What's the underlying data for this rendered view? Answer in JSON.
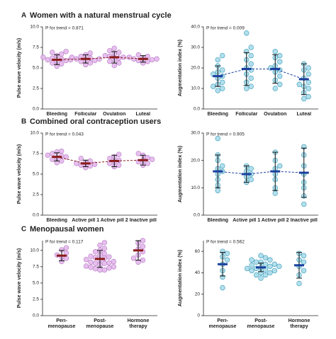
{
  "sections": [
    {
      "letter": "A",
      "title": "Women with a natural menstrual cycle"
    },
    {
      "letter": "B",
      "title": "Combined oral contraception users"
    },
    {
      "letter": "C",
      "title": "Menopausal women"
    }
  ],
  "chart_data": [
    {
      "type": "dot",
      "annotation": "P for trend = 0.871",
      "ylabel": "Pulse wave velocity (m/s)",
      "categories": [
        "Bleeding",
        "Follicular",
        "Ovulation",
        "Luteal"
      ],
      "points": [
        [
          5.2,
          5.5,
          5.6,
          5.8,
          5.9,
          6.0,
          6.0,
          6.1,
          6.2,
          6.3,
          6.5,
          6.7,
          6.9,
          7.0
        ],
        [
          5.4,
          5.6,
          5.8,
          5.9,
          6.0,
          6.1,
          6.1,
          6.2,
          6.3,
          6.4,
          6.6,
          6.8
        ],
        [
          5.3,
          5.6,
          5.8,
          6.0,
          6.2,
          6.3,
          6.4,
          6.5,
          6.7,
          6.9,
          7.1,
          7.4
        ],
        [
          5.6,
          5.8,
          5.9,
          6.0,
          6.1,
          6.1,
          6.2,
          6.3,
          6.4,
          6.6
        ]
      ],
      "means": [
        6.0,
        6.1,
        6.3,
        6.1
      ],
      "sds": [
        0.6,
        0.5,
        0.7,
        0.4
      ],
      "connect": true,
      "point_color": "#e4b8ec",
      "point_edge": "#b57ac4",
      "mean_color": "#8b1a1a",
      "ylim": [
        0,
        10
      ],
      "yticks": [
        {
          "value": 0,
          "label": "0.0"
        },
        {
          "value": 2.5,
          "label": "2.5"
        },
        {
          "value": 5,
          "label": "5.0"
        },
        {
          "value": 7.5,
          "label": "7.5"
        },
        {
          "value": 10,
          "label": "10.0"
        }
      ]
    },
    {
      "type": "dot",
      "annotation": "P for trend = 0.009",
      "ylabel": "Augmentation index (%)",
      "categories": [
        "Bleeding",
        "Follicular",
        "Ovulation",
        "Luteal"
      ],
      "points": [
        [
          9,
          10,
          11,
          12,
          13,
          15,
          16,
          17,
          18,
          19,
          21,
          24,
          26
        ],
        [
          10,
          11,
          13,
          15,
          17,
          19,
          20,
          22,
          24,
          26,
          28,
          30,
          37
        ],
        [
          10,
          12,
          14,
          16,
          18,
          19,
          20,
          21,
          23,
          25,
          26,
          28
        ],
        [
          5,
          6,
          8,
          10,
          11,
          12,
          13,
          15,
          17,
          19,
          20,
          22
        ]
      ],
      "means": [
        16,
        19.5,
        19.5,
        14.5
      ],
      "sds": [
        5,
        8,
        7,
        7.5
      ],
      "connect": true,
      "point_color": "#a9dcea",
      "point_edge": "#3a9ab8",
      "mean_color": "#1a3f9f",
      "ylim": [
        0,
        40
      ],
      "yticks": [
        {
          "value": 0,
          "label": "0.0"
        },
        {
          "value": 10,
          "label": "10.0"
        },
        {
          "value": 20,
          "label": "20.0"
        },
        {
          "value": 30,
          "label": "30.0"
        },
        {
          "value": 40,
          "label": "40.0"
        }
      ]
    },
    {
      "type": "dot",
      "annotation": "P for trend = 0.043",
      "ylabel": "Pulse wave velocity (m/s)",
      "categories": [
        "Bleeding",
        "Active pill 1",
        "Active pill 2",
        "Inactive pill"
      ],
      "points": [
        [
          6.4,
          6.6,
          6.8,
          7.0,
          7.1,
          7.2,
          7.3,
          7.5,
          7.7,
          7.8
        ],
        [
          5.8,
          6.0,
          6.1,
          6.2,
          6.3,
          6.4,
          6.6,
          6.9
        ],
        [
          5.9,
          6.1,
          6.3,
          6.5,
          6.7,
          6.9,
          7.1,
          7.4
        ],
        [
          6.1,
          6.3,
          6.5,
          6.7,
          6.8,
          7.0,
          7.3,
          7.5
        ]
      ],
      "means": [
        7.1,
        6.3,
        6.6,
        6.7
      ],
      "sds": [
        0.5,
        0.4,
        0.7,
        0.6
      ],
      "connect": true,
      "point_color": "#e4b8ec",
      "point_edge": "#b57ac4",
      "mean_color": "#8b1a1a",
      "ylim": [
        0,
        10
      ],
      "yticks": [
        {
          "value": 0,
          "label": "0.0"
        },
        {
          "value": 2.5,
          "label": "2.5"
        },
        {
          "value": 5,
          "label": "5.0"
        },
        {
          "value": 7.5,
          "label": "7.5"
        },
        {
          "value": 10,
          "label": "10.0"
        }
      ]
    },
    {
      "type": "dot",
      "annotation": "P for trend = 0.905",
      "ylabel": "Augmentation index (%)",
      "categories": [
        "Bleeding",
        "Active pill 1",
        "Active pill 2",
        "Inactive pill"
      ],
      "points": [
        [
          9,
          11,
          13,
          15,
          16,
          17,
          18,
          20,
          22,
          28
        ],
        [
          12,
          13,
          14,
          15,
          16,
          17,
          18
        ],
        [
          8,
          10,
          13,
          15,
          17,
          18,
          20,
          23
        ],
        [
          4,
          7,
          10,
          12,
          15,
          18,
          22,
          25
        ]
      ],
      "means": [
        16,
        15,
        16,
        15.5
      ],
      "sds": [
        6,
        3,
        7,
        9
      ],
      "connect": true,
      "point_color": "#a9dcea",
      "point_edge": "#3a9ab8",
      "mean_color": "#1a3f9f",
      "ylim": [
        0,
        30
      ],
      "yticks": [
        {
          "value": 0,
          "label": "0.0"
        },
        {
          "value": 10,
          "label": "10.0"
        },
        {
          "value": 20,
          "label": "20.0"
        },
        {
          "value": 30,
          "label": "30.0"
        }
      ]
    },
    {
      "type": "dot",
      "annotation": "P for trend = 0.117",
      "ylabel": "Pulse wave velocity (m/s)",
      "categories": [
        "Peri-menopause",
        "Post-menopause",
        "Hormone therapy"
      ],
      "points": [
        [
          8.3,
          8.8,
          9.0,
          9.3,
          9.6,
          10.1,
          10.4
        ],
        [
          7.0,
          7.0,
          7.2,
          7.3,
          7.4,
          7.5,
          7.6,
          7.8,
          8.0,
          8.0,
          8.1,
          8.2,
          8.3,
          8.5,
          8.6,
          8.8,
          8.9,
          9.0,
          9.1,
          9.3,
          9.5,
          9.8,
          10.0,
          10.3,
          10.8,
          11.2
        ],
        [
          8.2,
          8.5,
          8.8,
          9.3,
          9.8,
          10.2,
          10.6,
          11.1,
          11.5
        ]
      ],
      "means": [
        9.2,
        8.7,
        10.0
      ],
      "sds": [
        0.8,
        1.3,
        1.5
      ],
      "connect": false,
      "point_color": "#e4b8ec",
      "point_edge": "#b57ac4",
      "mean_color": "#8b1a1a",
      "ylim": [
        0,
        11.5
      ],
      "yticks": [
        {
          "value": 0,
          "label": "0.0"
        },
        {
          "value": 2.5,
          "label": "2.5"
        },
        {
          "value": 5,
          "label": "5.0"
        },
        {
          "value": 7.5,
          "label": "7.5"
        },
        {
          "value": 10,
          "label": "10.0"
        }
      ]
    },
    {
      "type": "dot",
      "annotation": "P for trend = 0.562",
      "ylabel": "Augmentation index (%)",
      "categories": [
        "Peri-menopause",
        "Post-menopause",
        "Hormone therapy"
      ],
      "points": [
        [
          26,
          36,
          42,
          48,
          52,
          55,
          58,
          60
        ],
        [
          35,
          38,
          38,
          40,
          40,
          42,
          42,
          43,
          44,
          44,
          45,
          46,
          46,
          47,
          48,
          48,
          50,
          50,
          52,
          52,
          54,
          56
        ],
        [
          30,
          38,
          42,
          46,
          50,
          52,
          56,
          58
        ]
      ],
      "means": [
        48,
        45,
        47
      ],
      "sds": [
        11,
        4,
        12
      ],
      "connect": false,
      "point_color": "#a9dcea",
      "point_edge": "#3a9ab8",
      "mean_color": "#1a3f9f",
      "ylim": [
        0,
        70
      ],
      "yticks": [
        0,
        20,
        40,
        60
      ]
    }
  ]
}
